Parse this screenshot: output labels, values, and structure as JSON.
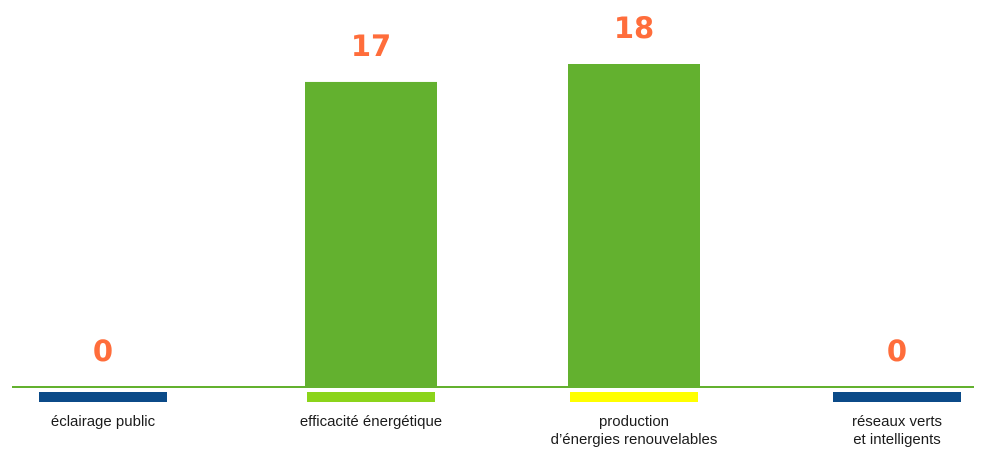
{
  "chart_data": {
    "type": "bar",
    "categories": [
      [
        "éclairage public"
      ],
      [
        "efficacité énergétique"
      ],
      [
        "production",
        "d’énergies renouvelables"
      ],
      [
        "réseaux verts",
        "et intelligents"
      ]
    ],
    "values": [
      0,
      17,
      18,
      0
    ],
    "value_labels": [
      "0",
      "17",
      "18",
      "0"
    ],
    "title": "",
    "xlabel": "",
    "ylabel": "",
    "ylim": [
      0,
      18
    ],
    "grid": false,
    "colors": {
      "bar": "#63b12f",
      "value_label": "#ff6d3b",
      "baseline": "#63b12f",
      "category_markers": [
        "#0b4a88",
        "#8bd41a",
        "#ffff00",
        "#0b4a88"
      ]
    }
  }
}
